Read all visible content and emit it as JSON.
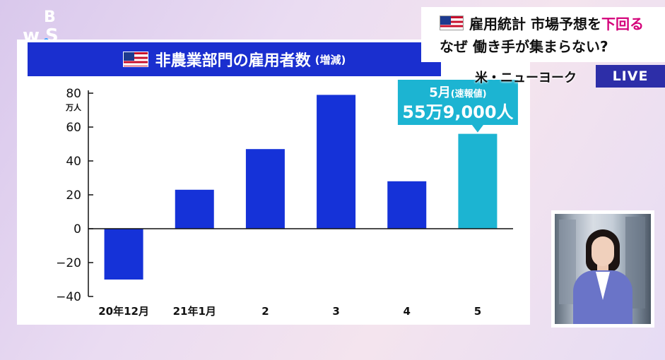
{
  "logo": {
    "line1": "B",
    "line2": "wS"
  },
  "headline": {
    "line1_part1": "雇用統計 市場予想を",
    "line1_highlight": "下回る",
    "line2": "なぜ 働き手が集まらない?"
  },
  "location": "米・ニューヨーク",
  "live_label": "LIVE",
  "colors": {
    "bar": "#1532d8",
    "highlight_bar": "#1cb4d2",
    "title_bg": "#1a2fcf",
    "live_bg": "#2d2ea8",
    "accent_text": "#d4007a"
  },
  "chart_data": {
    "type": "bar",
    "title": "非農業部門の雇用者数",
    "subtitle": "(増減)",
    "ylabel": "万人",
    "xlabel": "",
    "categories": [
      "20年12月",
      "21年1月",
      "2",
      "3",
      "4",
      "5"
    ],
    "values": [
      -30,
      23,
      47,
      79,
      28,
      56
    ],
    "highlight_index": 5,
    "ylim": [
      -40,
      80
    ],
    "yticks": [
      80,
      60,
      40,
      20,
      0,
      -20,
      -40
    ],
    "ytick_labels": [
      "80",
      "60",
      "40",
      "20",
      "0",
      "−20",
      "−40"
    ],
    "grid": false,
    "annotation": {
      "line1_main": "5月",
      "line1_sub": "(速報値)",
      "line2": "55万9,000人"
    }
  }
}
